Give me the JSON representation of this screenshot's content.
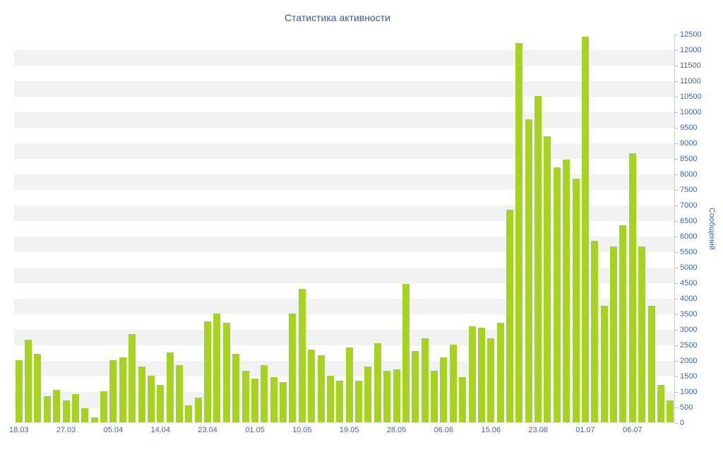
{
  "colors": {
    "bar": "#a6d322",
    "stripe": "#f2f2f2",
    "background": "#ffffff",
    "title_text": "#3a5795",
    "axis_label_text": "#4065a5",
    "axis_line": "#c6cfdd"
  },
  "chart_data": {
    "type": "bar",
    "title": "Статистика активности",
    "xlabel": "",
    "ylabel": "Сообщений",
    "ylim": [
      0,
      12500
    ],
    "y_tick_step": 500,
    "grid": "horizontal-stripes",
    "legend": "none",
    "y_tick_labels": [
      "0",
      "500",
      "1000",
      "1500",
      "2000",
      "2500",
      "3000",
      "3500",
      "4000",
      "4500",
      "5000",
      "5500",
      "6000",
      "6500",
      "7000",
      "7500",
      "8000",
      "8500",
      "9000",
      "9500",
      "10000",
      "10500",
      "11000",
      "11500",
      "12000",
      "12500"
    ],
    "x_ticks": [
      {
        "index": 0,
        "label": "18.03"
      },
      {
        "index": 5,
        "label": "27.03"
      },
      {
        "index": 10,
        "label": "05.04"
      },
      {
        "index": 15,
        "label": "14.04"
      },
      {
        "index": 20,
        "label": "23.04"
      },
      {
        "index": 25,
        "label": "01.05"
      },
      {
        "index": 30,
        "label": "10.05"
      },
      {
        "index": 35,
        "label": "19.05"
      },
      {
        "index": 40,
        "label": "28.05"
      },
      {
        "index": 45,
        "label": "06.06"
      },
      {
        "index": 50,
        "label": "15.06"
      },
      {
        "index": 55,
        "label": "23.06"
      },
      {
        "index": 60,
        "label": "01.07"
      },
      {
        "index": 65,
        "label": "06.07"
      }
    ],
    "values": [
      2000,
      2650,
      2200,
      850,
      1050,
      700,
      900,
      450,
      150,
      1000,
      2000,
      2100,
      2850,
      1800,
      1500,
      1200,
      2250,
      1850,
      550,
      800,
      3250,
      3500,
      3200,
      2200,
      1650,
      1400,
      1850,
      1450,
      1300,
      3500,
      4300,
      2350,
      2150,
      1500,
      1350,
      2400,
      1350,
      1800,
      2550,
      1650,
      1700,
      4450,
      2300,
      2700,
      1650,
      2100,
      2500,
      1450,
      3100,
      3050,
      2700,
      3200,
      6850,
      12200,
      9750,
      10500,
      9200,
      8200,
      8450,
      7850,
      12400,
      5850,
      3750,
      5650,
      6350,
      8650,
      5650,
      3750,
      1200,
      700
    ]
  }
}
